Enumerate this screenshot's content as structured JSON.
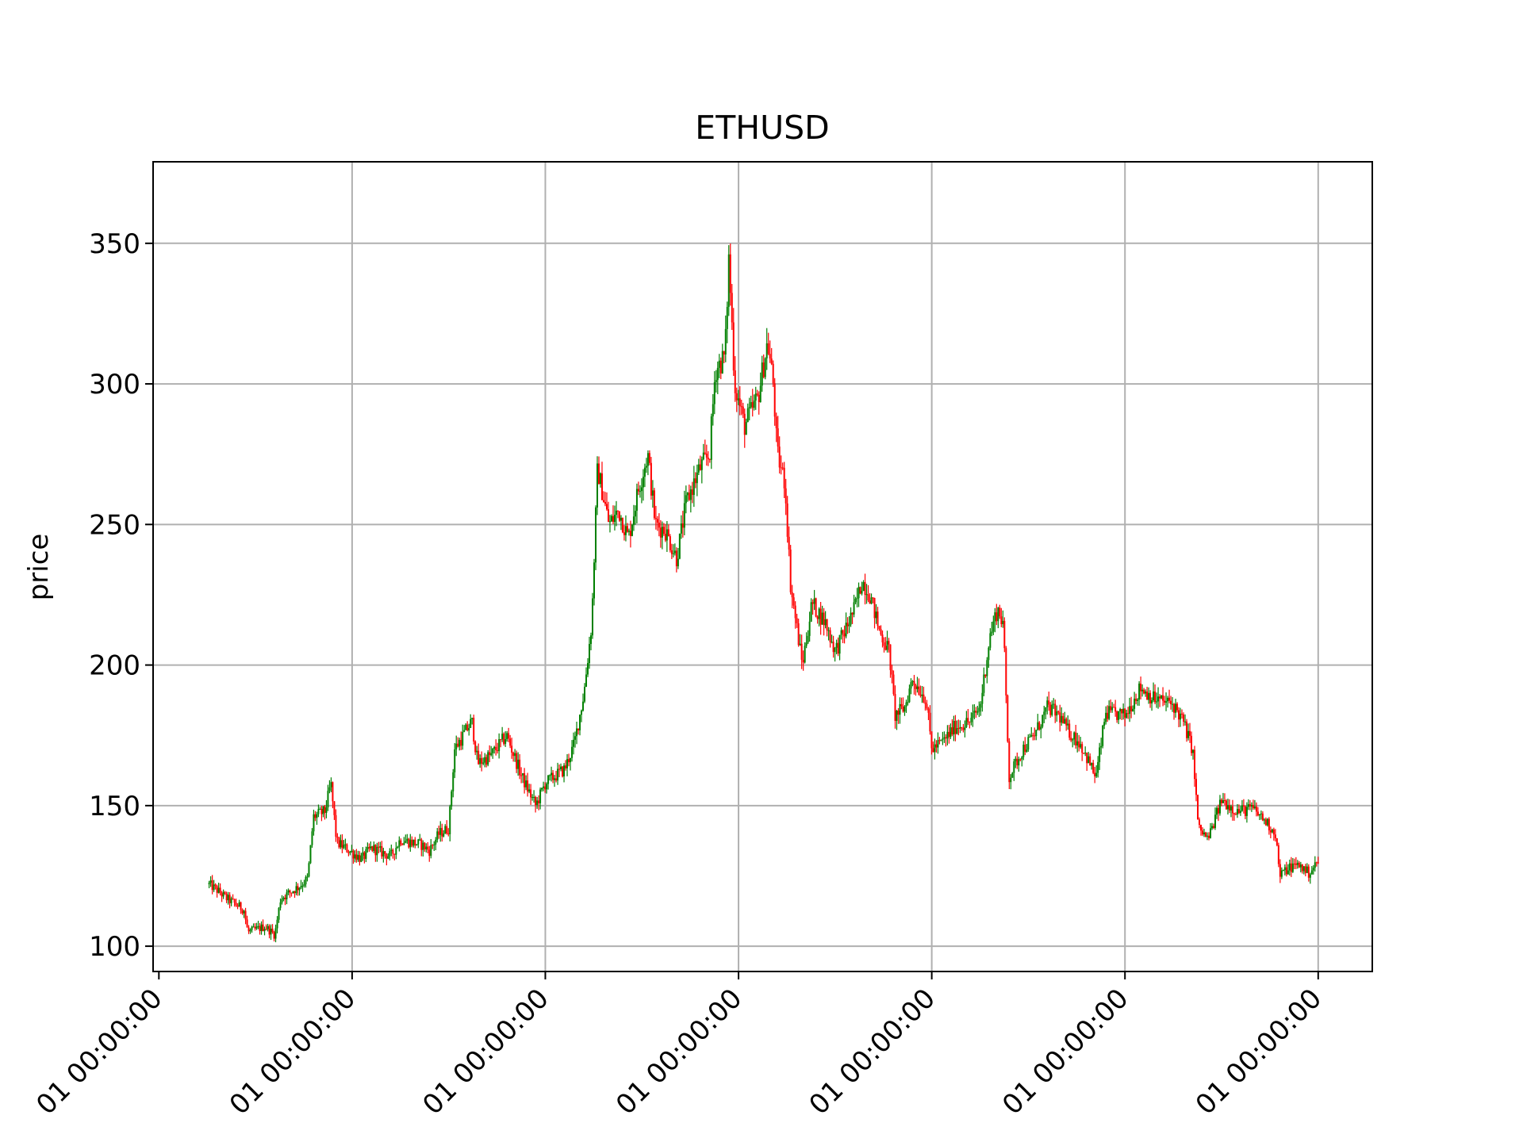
{
  "chart_data": {
    "type": "candlestick",
    "title": "ETHUSD",
    "xlabel": "",
    "ylabel": "price",
    "ylim": [
      91,
      379
    ],
    "grid": true,
    "legend": "none",
    "y_ticks": [
      100,
      150,
      200,
      250,
      300,
      350
    ],
    "x_ticks": [
      0,
      1,
      2,
      3,
      4,
      5,
      6
    ],
    "x_tick_labels": [
      "01 00:00:00",
      "01 00:00:00",
      "01 00:00:00",
      "01 00:00:00",
      "01 00:00:00",
      "01 00:00:00",
      "01 00:00:00"
    ],
    "xlim": [
      -0.03,
      6.28
    ],
    "colors": {
      "up": "#008000",
      "down": "#ff0000",
      "grid": "#b0b0b0"
    },
    "close_anchors": [
      [
        0.26,
        122
      ],
      [
        0.3,
        120
      ],
      [
        0.35,
        117
      ],
      [
        0.44,
        113
      ],
      [
        0.46,
        105
      ],
      [
        0.55,
        107
      ],
      [
        0.6,
        104
      ],
      [
        0.63,
        117
      ],
      [
        0.72,
        121
      ],
      [
        0.77,
        124
      ],
      [
        0.8,
        146
      ],
      [
        0.86,
        148
      ],
      [
        0.89,
        158
      ],
      [
        0.92,
        137
      ],
      [
        1.05,
        131
      ],
      [
        1.1,
        135
      ],
      [
        1.2,
        132
      ],
      [
        1.25,
        138
      ],
      [
        1.36,
        136
      ],
      [
        1.4,
        134
      ],
      [
        1.45,
        140
      ],
      [
        1.5,
        142
      ],
      [
        1.53,
        170
      ],
      [
        1.62,
        180
      ],
      [
        1.65,
        165
      ],
      [
        1.72,
        168
      ],
      [
        1.8,
        175
      ],
      [
        1.88,
        160
      ],
      [
        1.95,
        150
      ],
      [
        2.0,
        158
      ],
      [
        2.1,
        163
      ],
      [
        2.15,
        172
      ],
      [
        2.2,
        190
      ],
      [
        2.24,
        215
      ],
      [
        2.27,
        270
      ],
      [
        2.33,
        250
      ],
      [
        2.38,
        255
      ],
      [
        2.43,
        245
      ],
      [
        2.48,
        262
      ],
      [
        2.53,
        275
      ],
      [
        2.57,
        250
      ],
      [
        2.62,
        248
      ],
      [
        2.68,
        238
      ],
      [
        2.73,
        258
      ],
      [
        2.8,
        270
      ],
      [
        2.85,
        275
      ],
      [
        2.88,
        305
      ],
      [
        2.93,
        310
      ],
      [
        2.95,
        345
      ],
      [
        2.98,
        300
      ],
      [
        3.03,
        285
      ],
      [
        3.1,
        295
      ],
      [
        3.15,
        315
      ],
      [
        3.18,
        300
      ],
      [
        3.2,
        275
      ],
      [
        3.24,
        265
      ],
      [
        3.27,
        228
      ],
      [
        3.33,
        200
      ],
      [
        3.38,
        222
      ],
      [
        3.45,
        215
      ],
      [
        3.5,
        205
      ],
      [
        3.55,
        212
      ],
      [
        3.6,
        220
      ],
      [
        3.64,
        230
      ],
      [
        3.68,
        225
      ],
      [
        3.73,
        212
      ],
      [
        3.78,
        205
      ],
      [
        3.81,
        182
      ],
      [
        3.86,
        185
      ],
      [
        3.9,
        195
      ],
      [
        3.97,
        188
      ],
      [
        4.0,
        170
      ],
      [
        4.06,
        173
      ],
      [
        4.12,
        178
      ],
      [
        4.2,
        180
      ],
      [
        4.25,
        185
      ],
      [
        4.3,
        210
      ],
      [
        4.34,
        220
      ],
      [
        4.37,
        215
      ],
      [
        4.4,
        160
      ],
      [
        4.47,
        170
      ],
      [
        4.53,
        175
      ],
      [
        4.6,
        185
      ],
      [
        4.66,
        182
      ],
      [
        4.7,
        177
      ],
      [
        4.77,
        172
      ],
      [
        4.85,
        160
      ],
      [
        4.9,
        183
      ],
      [
        5.0,
        182
      ],
      [
        5.08,
        192
      ],
      [
        5.15,
        188
      ],
      [
        5.25,
        186
      ],
      [
        5.3,
        180
      ],
      [
        5.35,
        170
      ],
      [
        5.38,
        142
      ],
      [
        5.43,
        138
      ],
      [
        5.5,
        152
      ],
      [
        5.58,
        148
      ],
      [
        5.66,
        149
      ],
      [
        5.72,
        145
      ],
      [
        5.78,
        140
      ],
      [
        5.8,
        125
      ],
      [
        5.85,
        128
      ],
      [
        5.9,
        129
      ],
      [
        5.95,
        126
      ],
      [
        6.0,
        130
      ]
    ]
  }
}
